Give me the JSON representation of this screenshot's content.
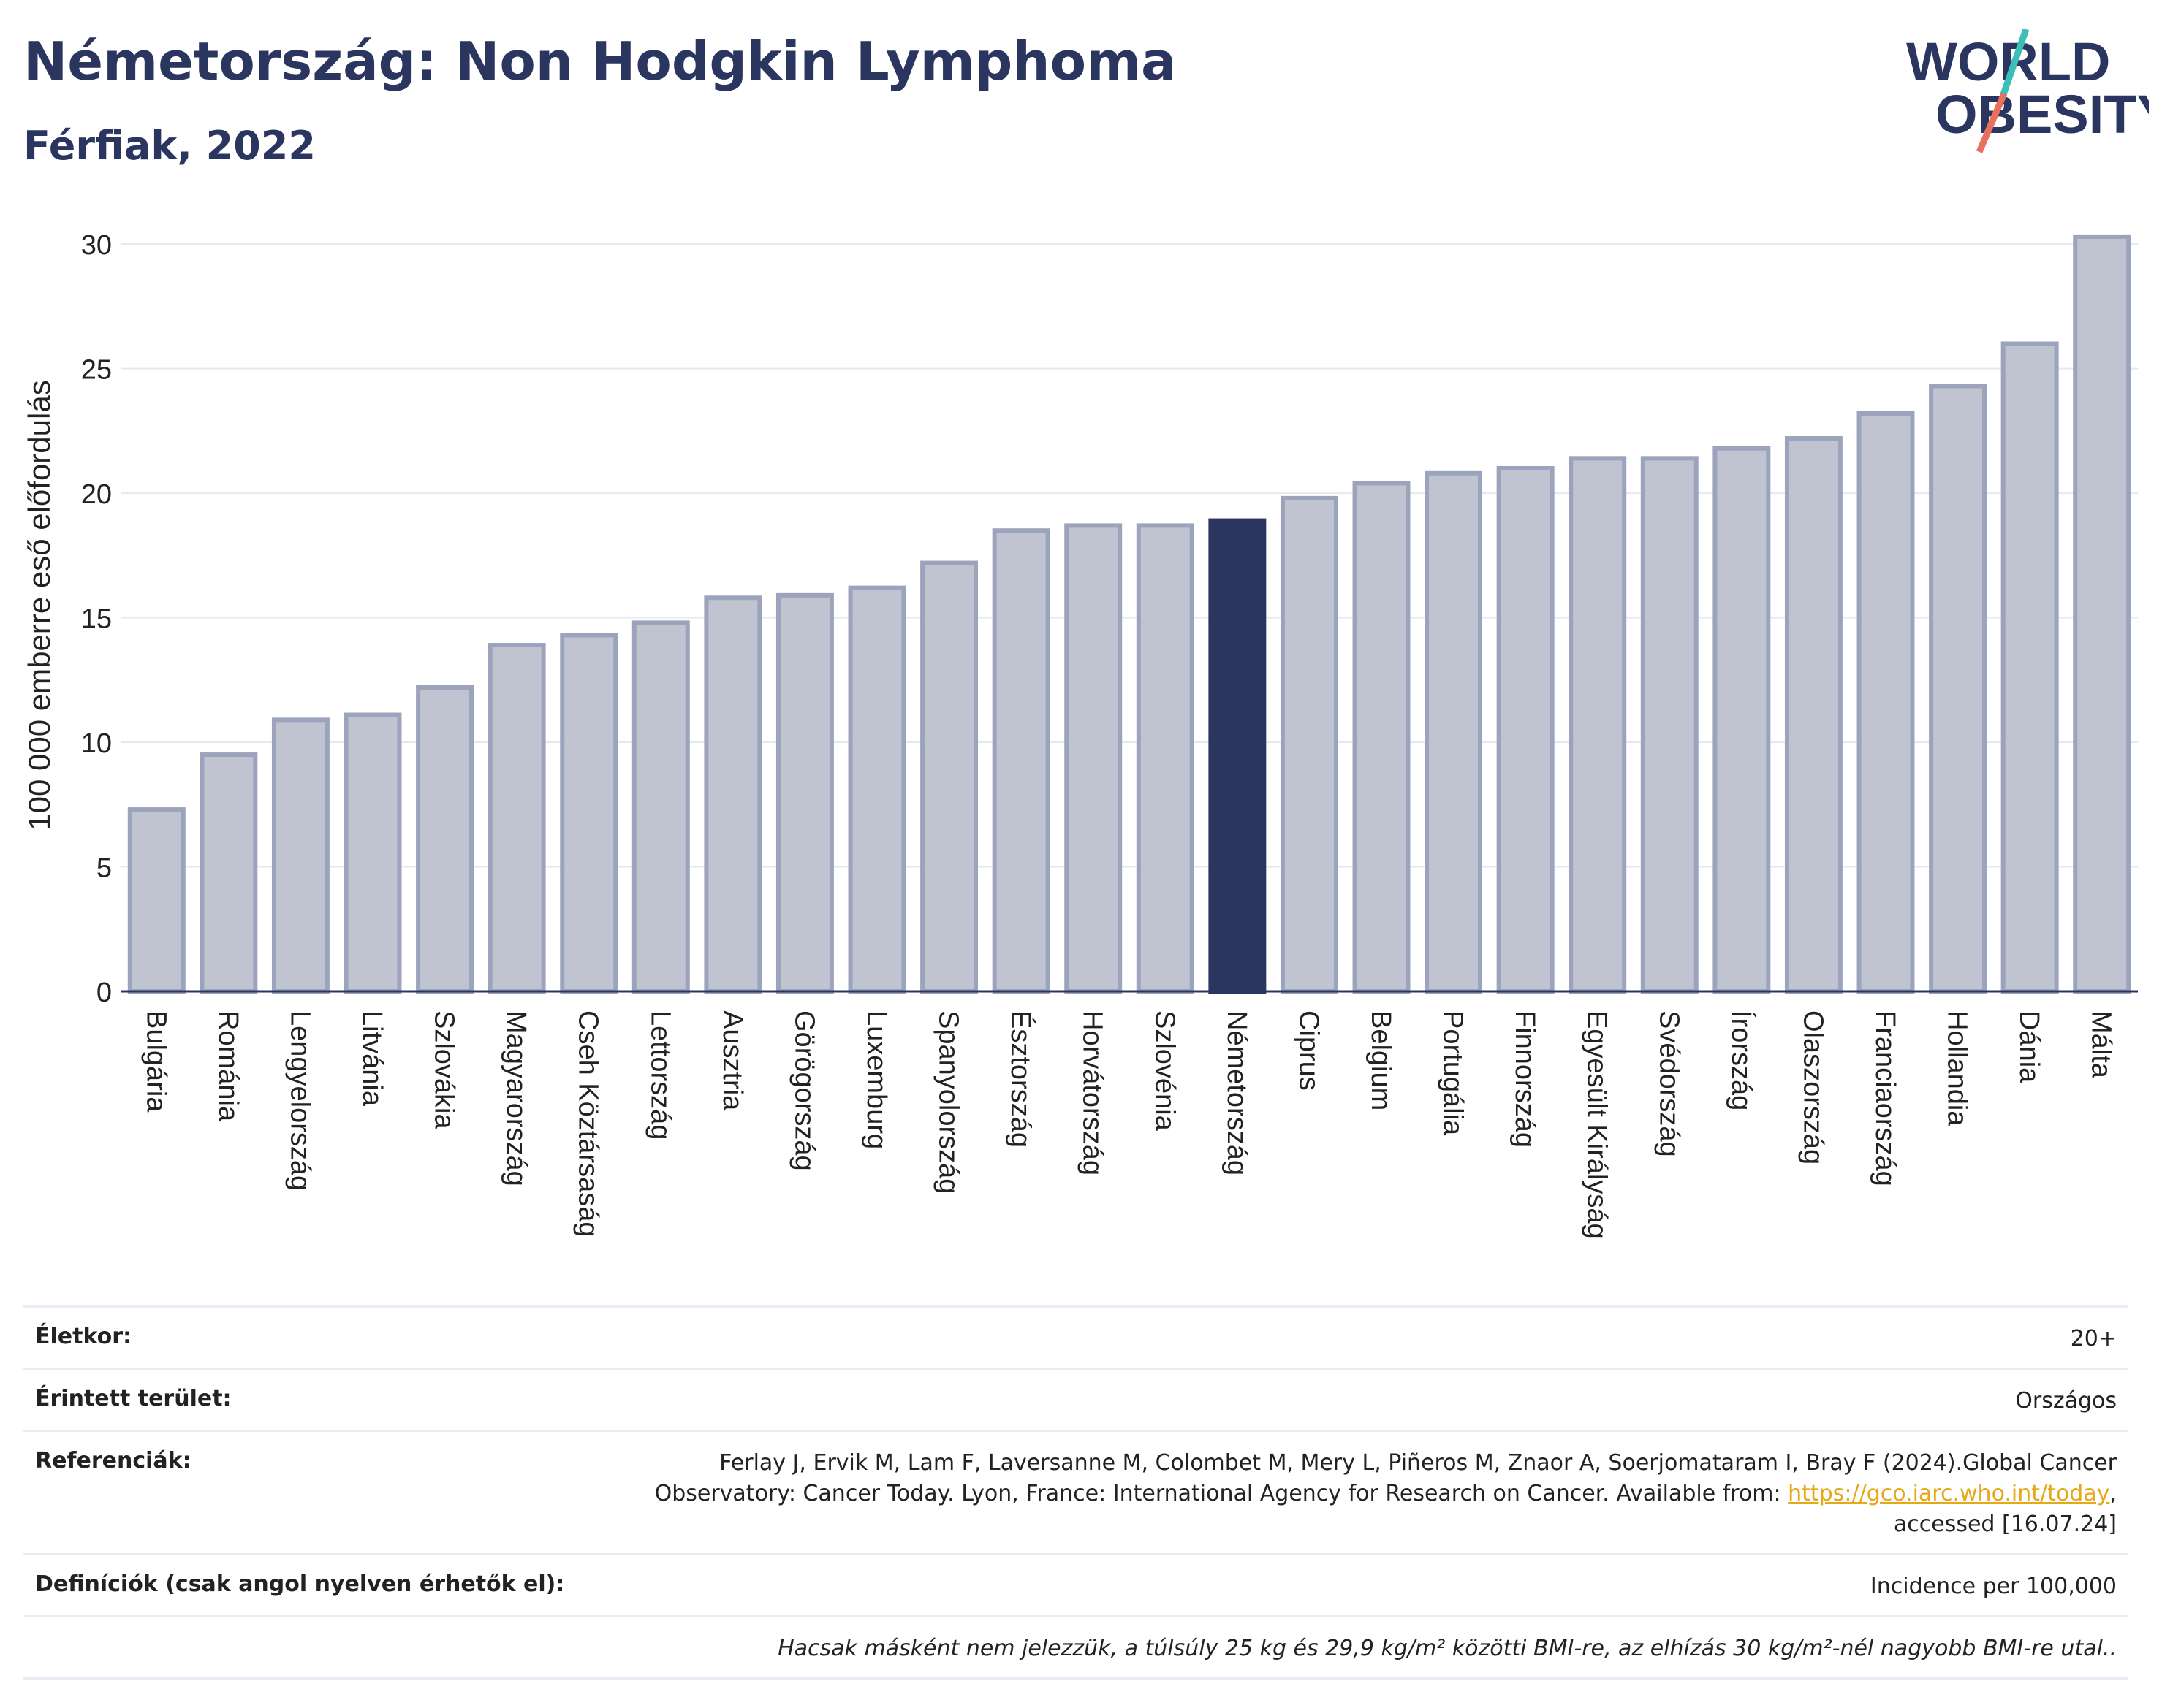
{
  "header": {
    "title": "Németország: Non Hodgkin Lymphoma",
    "subtitle": "Férfiak, 2022"
  },
  "logo": {
    "line1": "WORLD",
    "line2": "OBESITY",
    "colors": {
      "text": "#2a3560",
      "slash_teal": "#3bbfb6",
      "slash_coral": "#e8705f"
    }
  },
  "chart_data": {
    "type": "bar",
    "title": "Németország: Non Hodgkin Lymphoma",
    "subtitle": "Férfiak, 2022",
    "xlabel": "",
    "ylabel": "100 000 emberre eső előfordulás",
    "ylim": [
      0,
      31
    ],
    "yticks": [
      0,
      5,
      10,
      15,
      20,
      25,
      30
    ],
    "grid": true,
    "highlight": "Németország",
    "colors": {
      "bar": "#c0c4d1",
      "bar_border": "#9ba3bd",
      "highlight": "#2a3560"
    },
    "categories": [
      "Bulgária",
      "Románia",
      "Lengyelország",
      "Litvánia",
      "Szlovákia",
      "Magyarország",
      "Cseh Köztársaság",
      "Lettország",
      "Ausztria",
      "Görögország",
      "Luxemburg",
      "Spanyolország",
      "Észtország",
      "Horvátország",
      "Szlovénia",
      "Németország",
      "Ciprus",
      "Belgium",
      "Portugália",
      "Finnország",
      "Egyesült Királyság",
      "Svédország",
      "Írország",
      "Olaszország",
      "Franciaország",
      "Hollandia",
      "Dánia",
      "Málta"
    ],
    "values": [
      7.3,
      9.5,
      10.9,
      11.1,
      12.2,
      13.9,
      14.3,
      14.8,
      15.8,
      15.9,
      16.2,
      17.2,
      18.5,
      18.7,
      18.7,
      18.9,
      19.8,
      20.4,
      20.8,
      21.0,
      21.4,
      21.4,
      21.8,
      22.2,
      23.2,
      24.3,
      26.0,
      30.3
    ]
  },
  "info": {
    "age_label": "Életkor:",
    "age_value": "20+",
    "area_label": "Érintett terület:",
    "area_value": "Országos",
    "ref_label": "Referenciák:",
    "ref_text_1": "Ferlay J, Ervik M, Lam F, Laversanne M, Colombet M, Mery L, Piñeros M, Znaor A, Soerjomataram I, Bray F (2024).Global Cancer Observatory: Cancer Today. Lyon, France: International Agency for Research on Cancer. Available from: ",
    "ref_link": "https://gco.iarc.who.int/today",
    "ref_text_2": ", accessed [16.07.24]",
    "def_label": "Definíciók (csak angol nyelven érhetők el):",
    "def_value": "Incidence per 100,000",
    "note": "Hacsak másként nem jelezzük, a túlsúly 25 kg és 29,9 kg/m² közötti BMI-re, az elhízás 30 kg/m²-nél nagyobb BMI-re utal.."
  }
}
